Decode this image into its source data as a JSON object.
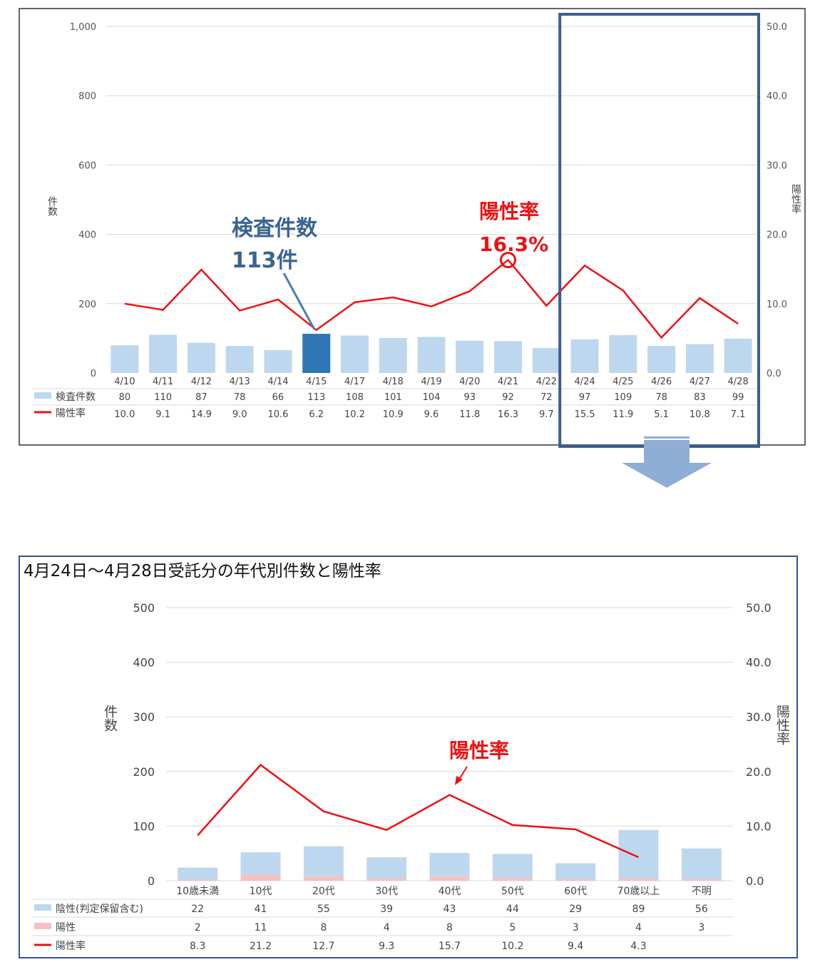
{
  "chart_data": [
    {
      "type": "bar",
      "categories": [
        "4/10",
        "4/11",
        "4/12",
        "4/13",
        "4/14",
        "4/15",
        "4/17",
        "4/18",
        "4/19",
        "4/20",
        "4/21",
        "4/22",
        "4/24",
        "4/25",
        "4/26",
        "4/27",
        "4/28"
      ],
      "series": [
        {
          "name": "検査件数",
          "type": "bar",
          "axis": "left",
          "values": [
            80,
            110,
            87,
            78,
            66,
            113,
            108,
            101,
            104,
            93,
            92,
            72,
            97,
            109,
            78,
            83,
            99
          ]
        },
        {
          "name": "陽性率",
          "type": "line",
          "axis": "right",
          "values": [
            10.0,
            9.1,
            14.9,
            9.0,
            10.6,
            6.2,
            10.2,
            10.9,
            9.6,
            11.8,
            16.3,
            9.7,
            15.5,
            11.9,
            5.1,
            10.8,
            7.1
          ]
        }
      ],
      "ylabel": "件数",
      "y2label": "陽性率",
      "ylim": [
        0,
        1000
      ],
      "y2lim": [
        0,
        50
      ],
      "yticks": [
        "0",
        "200",
        "400",
        "600",
        "800",
        "1,000"
      ],
      "y2ticks": [
        "0.0",
        "10.0",
        "20.0",
        "30.0",
        "40.0",
        "50.0"
      ],
      "highlight_category": "4/15",
      "highlight_range": [
        "4/24",
        "4/28"
      ],
      "annotations": {
        "count_label": "検査件数",
        "count_value": "113件",
        "rate_label": "陽性率",
        "rate_value": "16.3%"
      },
      "colors": {
        "bar": "#bdd7ee",
        "bar_highlight": "#2e75b6",
        "line": "#ee1111",
        "frame": "#3a5f8f"
      }
    },
    {
      "type": "bar",
      "title": "4月24日～4月28日受託分の年代別件数と陽性率",
      "categories": [
        "10歳未満",
        "10代",
        "20代",
        "30代",
        "40代",
        "50代",
        "60代",
        "70歳以上",
        "不明"
      ],
      "series": [
        {
          "name": "陰性(判定保留含む)",
          "type": "bar",
          "axis": "left",
          "stack": "s",
          "values": [
            22,
            41,
            55,
            39,
            43,
            44,
            29,
            89,
            56
          ]
        },
        {
          "name": "陽性",
          "type": "bar",
          "axis": "left",
          "stack": "s",
          "values": [
            2,
            11,
            8,
            4,
            8,
            5,
            3,
            4,
            3
          ]
        },
        {
          "name": "陽性率",
          "type": "line",
          "axis": "right",
          "values": [
            8.3,
            21.2,
            12.7,
            9.3,
            15.7,
            10.2,
            9.4,
            4.3,
            null
          ]
        }
      ],
      "ylabel": "件数",
      "y2label": "陽性率",
      "ylim": [
        0,
        500
      ],
      "y2lim": [
        0,
        50
      ],
      "yticks": [
        "0",
        "100",
        "200",
        "300",
        "400",
        "500"
      ],
      "y2ticks": [
        "0.0",
        "10.0",
        "20.0",
        "30.0",
        "40.0",
        "50.0"
      ],
      "annotations": {
        "rate_label": "陽性率"
      },
      "colors": {
        "negative": "#bdd7ee",
        "positive": "#f8c0c0",
        "line": "#ee1111",
        "frame": "#2f54a0"
      }
    }
  ]
}
